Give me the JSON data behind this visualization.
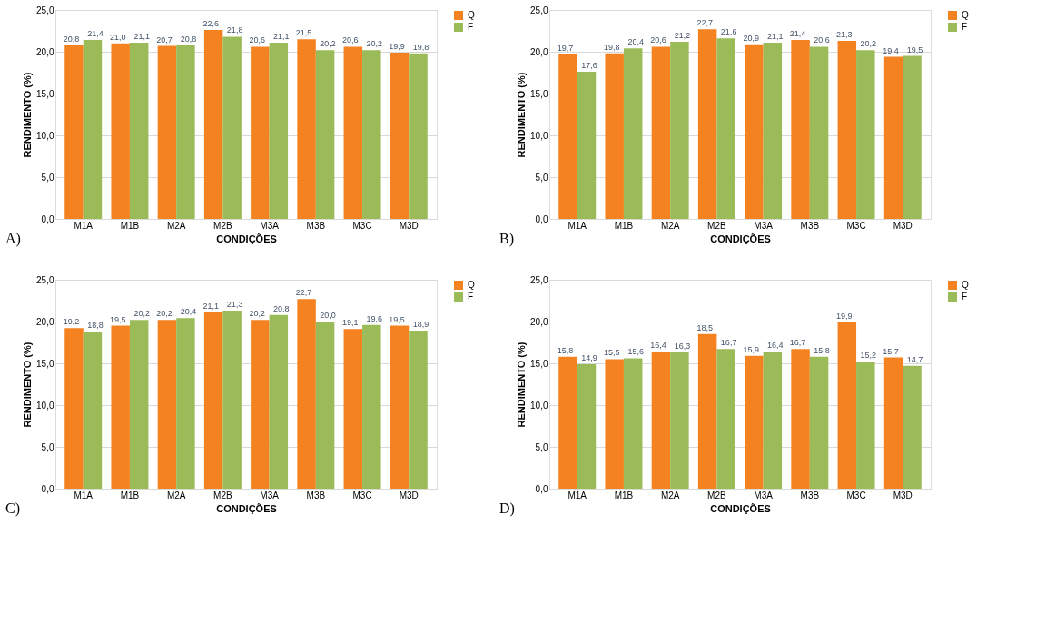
{
  "chart_data": [
    {
      "type": "bar",
      "categories": [
        "M1A",
        "M1B",
        "M2A",
        "M2B",
        "M3A",
        "M3B",
        "M3C",
        "M3D"
      ],
      "xlabel": "CONDIÇÕES",
      "ylabel": "RENDIMENTO (%)",
      "ylim": [
        0,
        25
      ],
      "yticks": [
        {
          "value": 0,
          "label": "0,0"
        },
        {
          "value": 5,
          "label": "5,0"
        },
        {
          "value": 10,
          "label": "10,0"
        },
        {
          "value": 15,
          "label": "15,0"
        },
        {
          "value": 20,
          "label": "20,0"
        },
        {
          "value": 25,
          "label": "25,0"
        }
      ],
      "grid": "y",
      "legend": "right",
      "annotations": [
        "A)"
      ],
      "series": [
        {
          "name": "Q",
          "color": "#f58220",
          "values": [
            20.8,
            21.0,
            20.7,
            22.6,
            20.6,
            21.5,
            20.6,
            19.9
          ],
          "value_labels": [
            "20,8",
            "21,0",
            "20,7",
            "22,6",
            "20,6",
            "21,5",
            "20,6",
            "19,9"
          ]
        },
        {
          "name": "F",
          "color": "#9bbb59",
          "values": [
            21.4,
            21.1,
            20.8,
            21.8,
            21.1,
            20.2,
            20.2,
            19.8
          ],
          "value_labels": [
            "21,4",
            "21,1",
            "20,8",
            "21,8",
            "21,1",
            "20,2",
            "20,2",
            "19,8"
          ]
        }
      ]
    },
    {
      "type": "bar",
      "categories": [
        "M1A",
        "M1B",
        "M2A",
        "M2B",
        "M3A",
        "M3B",
        "M3C",
        "M3D"
      ],
      "xlabel": "CONDIÇÕES",
      "ylabel": "RENDIMENTO (%)",
      "ylim": [
        0,
        25
      ],
      "yticks": [
        {
          "value": 0,
          "label": "0,0"
        },
        {
          "value": 5,
          "label": "5,0"
        },
        {
          "value": 10,
          "label": "10,0"
        },
        {
          "value": 15,
          "label": "15,0"
        },
        {
          "value": 20,
          "label": "20,0"
        },
        {
          "value": 25,
          "label": "25,0"
        }
      ],
      "grid": "y",
      "legend": "right",
      "annotations": [
        "B)"
      ],
      "series": [
        {
          "name": "Q",
          "color": "#f58220",
          "values": [
            19.7,
            19.8,
            20.6,
            22.7,
            20.9,
            21.4,
            21.3,
            19.4
          ],
          "value_labels": [
            "19,7",
            "19,8",
            "20,6",
            "22,7",
            "20,9",
            "21,4",
            "21,3",
            "19,4"
          ]
        },
        {
          "name": "F",
          "color": "#9bbb59",
          "values": [
            17.6,
            20.4,
            21.2,
            21.6,
            21.1,
            20.6,
            20.2,
            19.5
          ],
          "value_labels": [
            "17,6",
            "20,4",
            "21,2",
            "21,6",
            "21,1",
            "20,6",
            "20,2",
            "19,5"
          ]
        }
      ]
    },
    {
      "type": "bar",
      "categories": [
        "M1A",
        "M1B",
        "M2A",
        "M2B",
        "M3A",
        "M3B",
        "M3C",
        "M3D"
      ],
      "xlabel": "CONDIÇÕES",
      "ylabel": "RENDIMENTO (%)",
      "ylim": [
        0,
        25
      ],
      "yticks": [
        {
          "value": 0,
          "label": "0,0"
        },
        {
          "value": 5,
          "label": "5,0"
        },
        {
          "value": 10,
          "label": "10,0"
        },
        {
          "value": 15,
          "label": "15,0"
        },
        {
          "value": 20,
          "label": "20,0"
        },
        {
          "value": 25,
          "label": "25,0"
        }
      ],
      "grid": "y",
      "legend": "right",
      "annotations": [
        "C)"
      ],
      "series": [
        {
          "name": "Q",
          "color": "#f58220",
          "values": [
            19.2,
            19.5,
            20.2,
            21.1,
            20.2,
            22.7,
            19.1,
            19.5
          ],
          "value_labels": [
            "19,2",
            "19,5",
            "20,2",
            "21,1",
            "20,2",
            "22,7",
            "19,1",
            "19,5"
          ]
        },
        {
          "name": "F",
          "color": "#9bbb59",
          "values": [
            18.8,
            20.2,
            20.4,
            21.3,
            20.8,
            20.0,
            19.6,
            18.9
          ],
          "value_labels": [
            "18,8",
            "20,2",
            "20,4",
            "21,3",
            "20,8",
            "20,0",
            "19,6",
            "18,9"
          ]
        }
      ]
    },
    {
      "type": "bar",
      "categories": [
        "M1A",
        "M1B",
        "M2A",
        "M2B",
        "M3A",
        "M3B",
        "M3C",
        "M3D"
      ],
      "xlabel": "CONDIÇÕES",
      "ylabel": "RENDIMENTO (%)",
      "ylim": [
        0,
        25
      ],
      "yticks": [
        {
          "value": 0,
          "label": "0,0"
        },
        {
          "value": 5,
          "label": "5,0"
        },
        {
          "value": 10,
          "label": "10,0"
        },
        {
          "value": 15,
          "label": "15,0"
        },
        {
          "value": 20,
          "label": "20,0"
        },
        {
          "value": 25,
          "label": "25,0"
        }
      ],
      "grid": "y",
      "legend": "right",
      "annotations": [
        "D)"
      ],
      "series": [
        {
          "name": "Q",
          "color": "#f58220",
          "values": [
            15.8,
            15.5,
            16.4,
            18.5,
            15.9,
            16.7,
            19.9,
            15.7
          ],
          "value_labels": [
            "15,8",
            "15,5",
            "16,4",
            "18,5",
            "15,9",
            "16,7",
            "19,9",
            "15,7"
          ]
        },
        {
          "name": "F",
          "color": "#9bbb59",
          "values": [
            14.9,
            15.6,
            16.3,
            16.7,
            16.4,
            15.8,
            15.2,
            14.7
          ],
          "value_labels": [
            "14,9",
            "15,6",
            "16,3",
            "16,7",
            "16,4",
            "15,8",
            "15,2",
            "14,7"
          ]
        }
      ]
    }
  ]
}
